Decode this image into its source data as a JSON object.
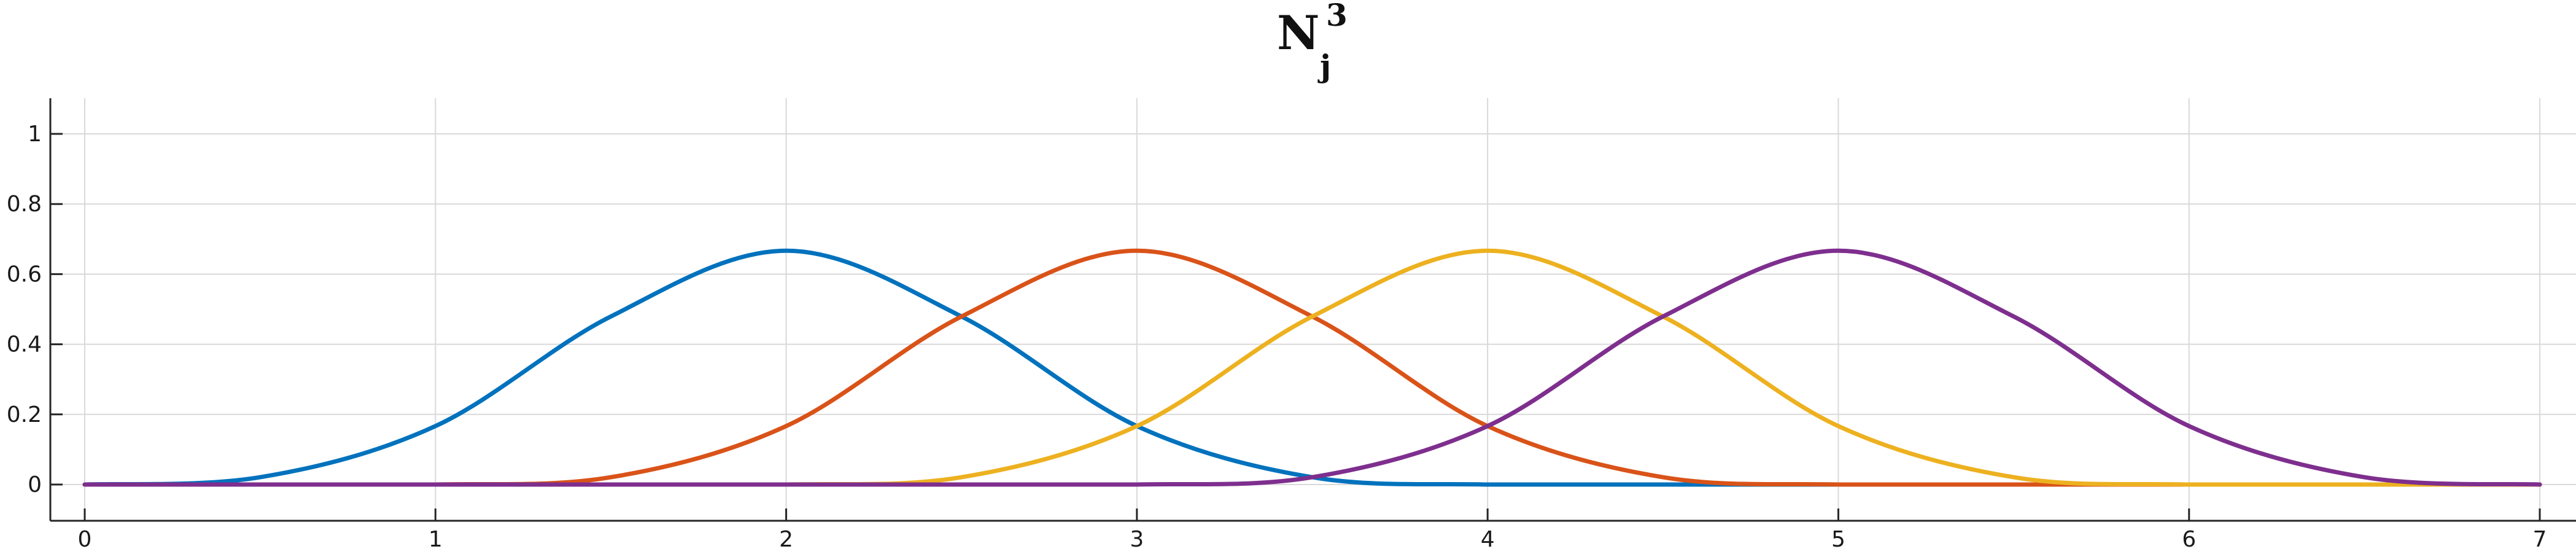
{
  "chart_data": {
    "type": "line",
    "title": {
      "base": "N",
      "subscript": "j",
      "superscript": "3"
    },
    "xlabel": "",
    "ylabel": "",
    "xlim": [
      -0.1,
      7.1
    ],
    "ylim": [
      -0.1,
      1.1
    ],
    "x_ticks": [
      0,
      1,
      2,
      3,
      4,
      5,
      6,
      7
    ],
    "y_ticks": [
      0,
      0.2,
      0.4,
      0.6,
      0.8,
      1
    ],
    "x_tick_labels": [
      "0",
      "1",
      "2",
      "3",
      "4",
      "5",
      "6",
      "7"
    ],
    "y_tick_labels": [
      "0",
      "0.2",
      "0.4",
      "0.6",
      "0.8",
      "1"
    ],
    "grid": true,
    "x": [
      0,
      0.5,
      1,
      1.5,
      2,
      2.5,
      3,
      3.5,
      4,
      4.5,
      5,
      5.5,
      6,
      6.5,
      7
    ],
    "series": [
      {
        "color": "#0072BD",
        "values": [
          0,
          0.0208,
          0.1667,
          0.4792,
          0.6667,
          0.4792,
          0.1667,
          0.0208,
          0,
          0,
          0,
          0,
          0,
          0,
          0
        ]
      },
      {
        "color": "#D95319",
        "values": [
          0,
          0,
          0,
          0.0208,
          0.1667,
          0.4792,
          0.6667,
          0.4792,
          0.1667,
          0.0208,
          0,
          0,
          0,
          0,
          0
        ]
      },
      {
        "color": "#EDB120",
        "values": [
          0,
          0,
          0,
          0,
          0,
          0.0208,
          0.1667,
          0.4792,
          0.6667,
          0.4792,
          0.1667,
          0.0208,
          0,
          0,
          0
        ]
      },
      {
        "color": "#7E2F8E",
        "values": [
          0,
          0,
          0,
          0,
          0,
          0,
          0,
          0.0208,
          0.1667,
          0.4792,
          0.6667,
          0.4792,
          0.1667,
          0.0208,
          0
        ]
      }
    ],
    "colors": {
      "axis": "#262626",
      "grid": "#d9d9d9",
      "background": "#ffffff"
    }
  }
}
